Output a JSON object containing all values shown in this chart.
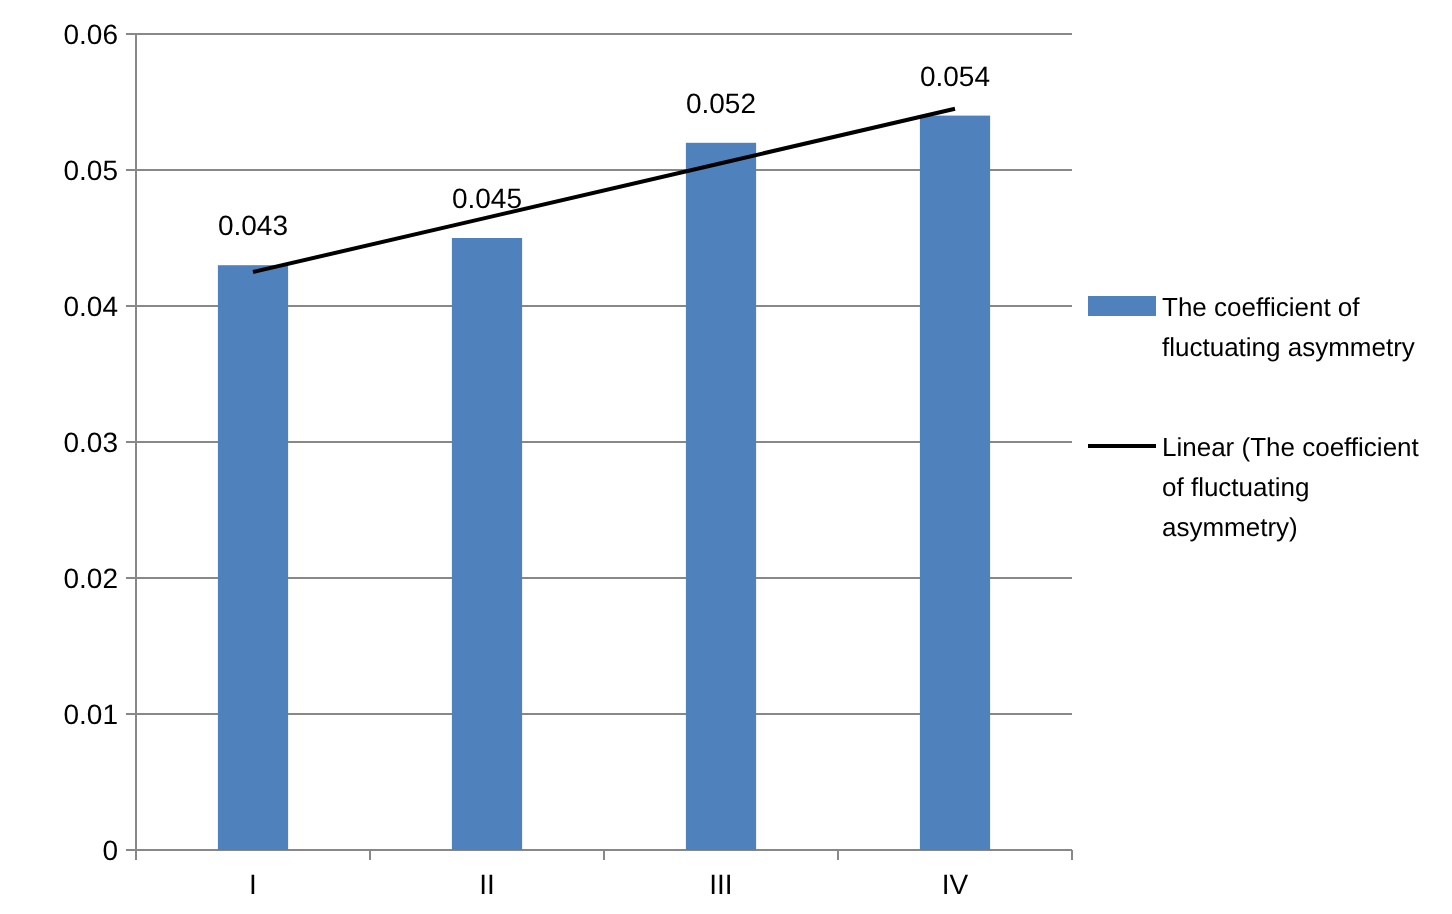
{
  "chart_data": {
    "type": "bar",
    "categories": [
      "I",
      "II",
      "III",
      "IV"
    ],
    "series": [
      {
        "name": "The coefficient of fluctuating asymmetry",
        "color": "#4f81bd",
        "values": [
          0.043,
          0.045,
          0.052,
          0.054
        ],
        "value_labels": [
          "0.043",
          "0.045",
          "0.052",
          "0.054"
        ]
      },
      {
        "name": "Linear (The coefficient of fluctuating asymmetry)",
        "type": "line",
        "color": "#000000",
        "values": [
          0.0425,
          0.0465,
          0.0505,
          0.0545
        ]
      }
    ],
    "ylim": [
      0,
      0.06
    ],
    "yticks": [
      0,
      0.01,
      0.02,
      0.03,
      0.04,
      0.05,
      0.06
    ],
    "grid": "y",
    "legend": "right"
  }
}
